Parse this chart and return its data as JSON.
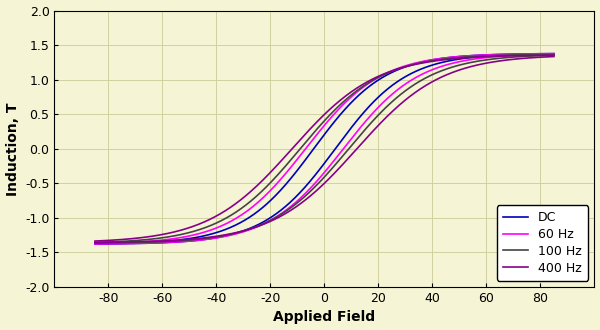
{
  "title": "",
  "xlabel": "Applied Field",
  "ylabel": "Induction, T",
  "xlim": [
    -100,
    100
  ],
  "ylim": [
    -2.0,
    2.0
  ],
  "xticks": [
    -80,
    -60,
    -40,
    -20,
    0,
    20,
    40,
    60,
    80
  ],
  "yticks": [
    -2.0,
    -1.5,
    -1.0,
    -0.5,
    0.0,
    0.5,
    1.0,
    1.5,
    2.0
  ],
  "background_color": "#f5f5d5",
  "grid_color": "#d0d0a0",
  "curves": [
    {
      "label": "DC",
      "color": "#0000bb",
      "linewidth": 1.2,
      "Hc": 4.0,
      "Bsat": 1.38,
      "k": 0.038
    },
    {
      "label": "60 Hz",
      "color": "#ff00ff",
      "linewidth": 1.2,
      "Hc": 7.0,
      "Bsat": 1.38,
      "k": 0.036
    },
    {
      "label": "100 Hz",
      "color": "#444444",
      "linewidth": 1.2,
      "Hc": 9.0,
      "Bsat": 1.37,
      "k": 0.034
    },
    {
      "label": "400 Hz",
      "color": "#880088",
      "linewidth": 1.2,
      "Hc": 12.0,
      "Bsat": 1.36,
      "k": 0.032
    }
  ],
  "legend_loc": "lower right",
  "legend_fontsize": 9,
  "axis_fontsize": 10,
  "tick_fontsize": 9
}
